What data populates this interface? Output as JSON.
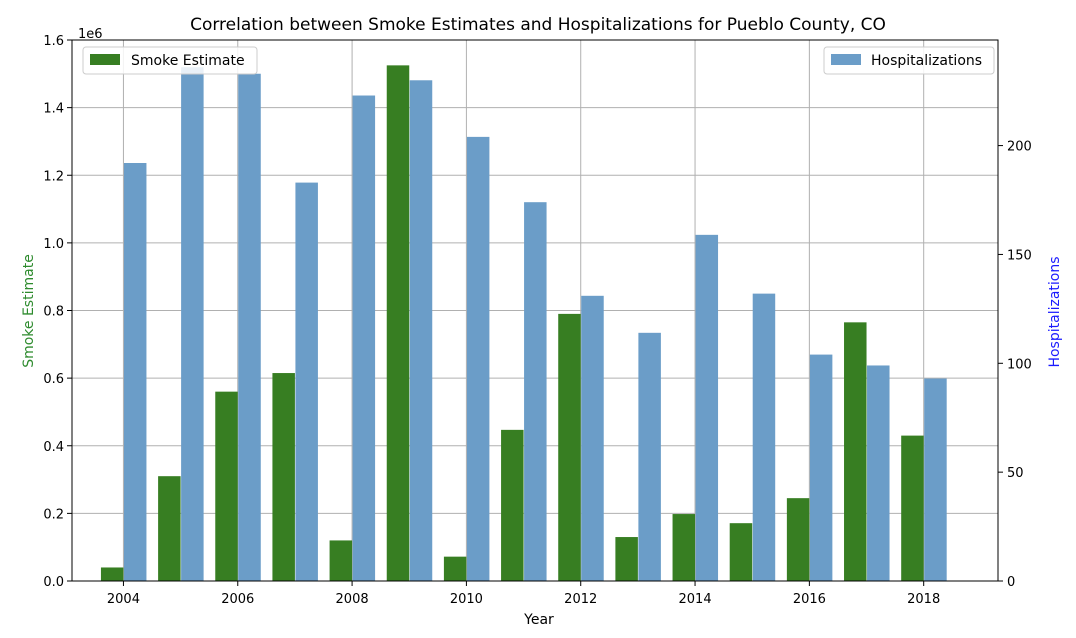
{
  "chart_data": {
    "type": "bar",
    "title": "Correlation between Smoke Estimates and Hospitalizations for Pueblo County, CO",
    "xlabel": "Year",
    "ylabel_left": "Smoke Estimate",
    "ylabel_right": "Hospitalizations",
    "left_offset_text": "1e6",
    "x": [
      2004,
      2005,
      2006,
      2007,
      2008,
      2009,
      2010,
      2011,
      2012,
      2013,
      2014,
      2015,
      2016,
      2017,
      2018
    ],
    "xlim": [
      2003.1,
      2019.3
    ],
    "x_ticks": [
      2004,
      2006,
      2008,
      2010,
      2012,
      2014,
      2016,
      2018
    ],
    "x_tick_labels": [
      "2004",
      "2006",
      "2008",
      "2010",
      "2012",
      "2014",
      "2016",
      "2018"
    ],
    "grid": true,
    "series": [
      {
        "name": "Smoke Estimate",
        "axis": "left",
        "color": "#377e22",
        "values": [
          40000,
          310000,
          560000,
          615000,
          120000,
          1525000,
          72000,
          447000,
          790000,
          130000,
          198000,
          171000,
          245000,
          765000,
          430000
        ],
        "ylim": [
          0,
          1600000
        ],
        "ticks": [
          0,
          200000,
          400000,
          600000,
          800000,
          1000000,
          1200000,
          1400000,
          1600000
        ],
        "tick_labels": [
          "0.0",
          "0.2",
          "0.4",
          "0.6",
          "0.8",
          "1.0",
          "1.2",
          "1.4",
          "1.6"
        ],
        "legend_position": "top-left"
      },
      {
        "name": "Hospitalizations",
        "axis": "right",
        "color": "#6b9dc8",
        "values": [
          192,
          236,
          233,
          183,
          223,
          230,
          204,
          174,
          131,
          114,
          159,
          132,
          104,
          99,
          93
        ],
        "ylim": [
          0,
          248.5
        ],
        "ticks": [
          0,
          50,
          100,
          150,
          200
        ],
        "tick_labels": [
          "0",
          "50",
          "100",
          "150",
          "200"
        ],
        "legend_position": "top-right"
      }
    ],
    "label_colors": {
      "left": "#2e8b2e",
      "right": "#1a1aff"
    }
  }
}
